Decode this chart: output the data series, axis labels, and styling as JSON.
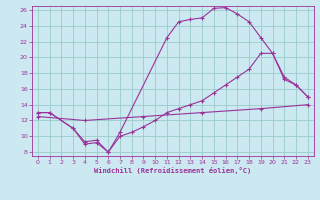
{
  "xlabel": "Windchill (Refroidissement éolien,°C)",
  "bg_color": "#cce8f0",
  "line_color": "#993399",
  "grid_color": "#99cccc",
  "xlim": [
    -0.5,
    23.5
  ],
  "ylim": [
    7.5,
    26.5
  ],
  "xticks": [
    0,
    1,
    2,
    3,
    4,
    5,
    6,
    7,
    8,
    9,
    10,
    11,
    12,
    13,
    14,
    15,
    16,
    17,
    18,
    19,
    20,
    21,
    22,
    23
  ],
  "yticks": [
    8,
    10,
    12,
    14,
    16,
    18,
    20,
    22,
    24,
    26
  ],
  "line1_x": [
    0,
    1,
    3,
    4,
    5,
    6,
    7,
    11,
    12,
    13,
    14,
    15,
    16,
    17,
    18,
    19,
    20,
    21,
    22,
    23
  ],
  "line1_y": [
    13,
    13,
    11,
    9,
    9.2,
    8.0,
    10.5,
    22.5,
    24.5,
    24.8,
    25.0,
    26.2,
    26.3,
    25.5,
    24.5,
    22.5,
    20.5,
    17.5,
    16.5,
    15.0
  ],
  "line2_x": [
    0,
    1,
    3,
    4,
    5,
    6,
    7,
    8,
    9,
    10,
    11,
    12,
    13,
    14,
    15,
    16,
    17,
    18,
    19,
    20,
    21,
    22,
    23
  ],
  "line2_y": [
    13,
    13,
    11,
    9.3,
    9.5,
    8.0,
    10.0,
    10.5,
    11.2,
    12.0,
    13.0,
    13.5,
    14.0,
    14.5,
    15.5,
    16.5,
    17.5,
    18.5,
    20.5,
    20.5,
    17.2,
    16.5,
    15.0
  ],
  "line3_x": [
    0,
    4,
    9,
    14,
    19,
    23
  ],
  "line3_y": [
    12.5,
    12.0,
    12.5,
    13.0,
    13.5,
    14.0
  ]
}
